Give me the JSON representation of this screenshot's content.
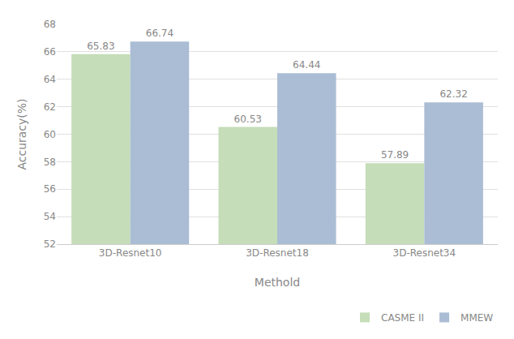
{
  "chart_data": {
    "type": "bar",
    "categories": [
      "3D-Resnet10",
      "3D-Resnet18",
      "3D-Resnet34"
    ],
    "series": [
      {
        "name": "CASME II",
        "color": "#c5ddb8",
        "values": [
          65.83,
          60.53,
          57.89
        ]
      },
      {
        "name": "MMEW",
        "color": "#aabdd4",
        "values": [
          66.74,
          64.44,
          62.32
        ]
      }
    ],
    "xlabel": "Methold",
    "ylabel": "Accuracy(%)",
    "ylim": [
      52,
      68
    ],
    "yticks": [
      52,
      54,
      56,
      58,
      60,
      62,
      64,
      66,
      68
    ],
    "grid": true,
    "legend": "bottom",
    "data_labels": true
  }
}
